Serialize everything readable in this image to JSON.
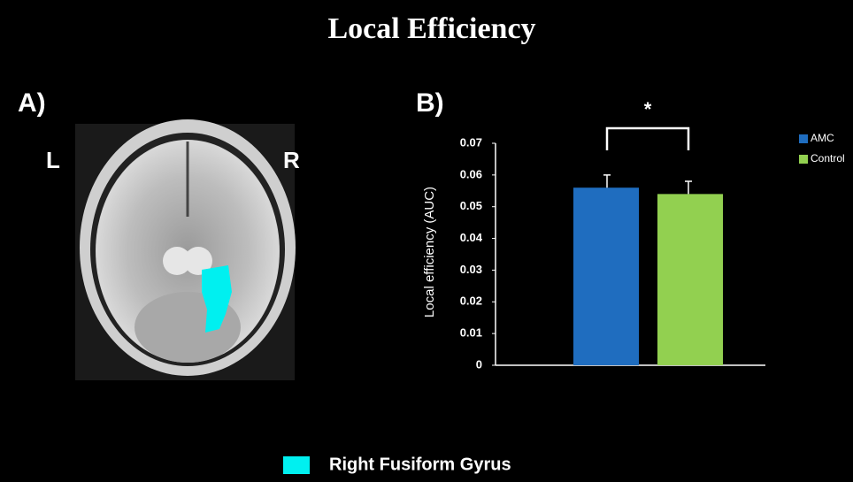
{
  "header": {
    "title": "Local Efficiency"
  },
  "panel_a": {
    "label": "A)",
    "left": "L",
    "right": "R",
    "legend": "Right Fusiform Gyrus",
    "region_color": "#00f0f0"
  },
  "panel_b": {
    "label": "B)"
  },
  "chart_data": {
    "type": "bar",
    "ylabel": "Local efficiency (AUC)",
    "annotation": "*",
    "categories": [
      null
    ],
    "series": [
      {
        "name": "AMC",
        "color": "#1f6dbf",
        "values": [
          0.056
        ],
        "errors": [
          0.004
        ]
      },
      {
        "name": "Control",
        "color": "#92d050",
        "values": [
          0.054
        ],
        "errors": [
          0.004
        ]
      }
    ],
    "ylim": [
      0,
      0.07
    ],
    "yticks": [
      0,
      0.01,
      0.02,
      0.03,
      0.04,
      0.05,
      0.06,
      0.07
    ],
    "legend": "upper right"
  }
}
